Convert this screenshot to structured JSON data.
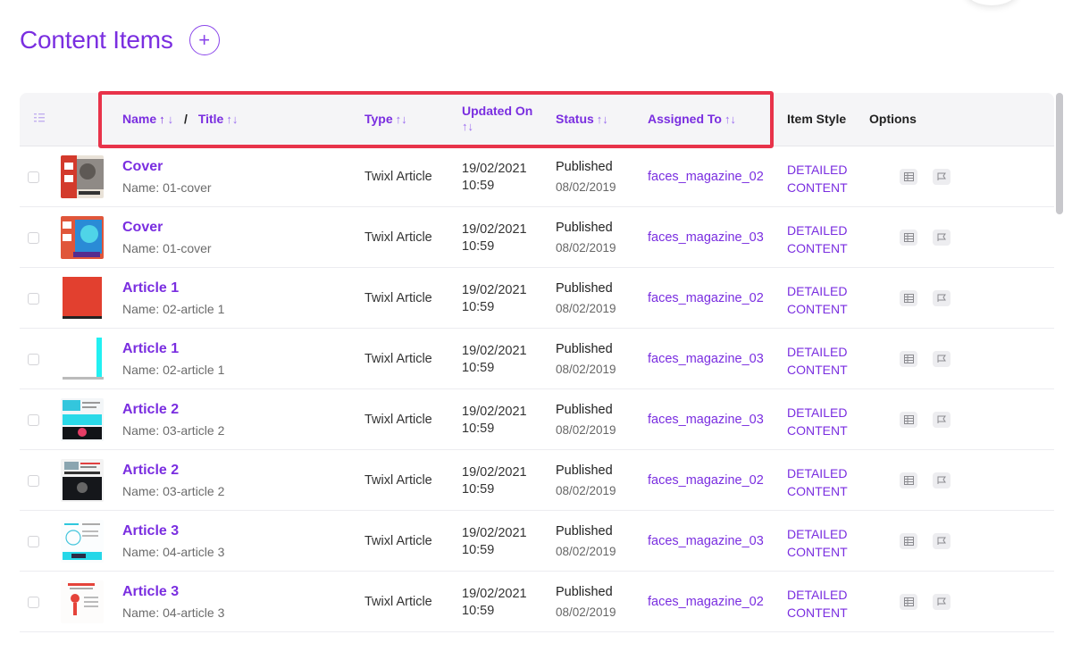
{
  "page": {
    "title": "Content Items",
    "add_icon": "plus-circle-icon"
  },
  "table": {
    "headers": {
      "select_icon": "list-check-icon",
      "name": "Name",
      "separator": "/",
      "title": "Title",
      "type": "Type",
      "updated_on": "Updated On",
      "status": "Status",
      "assigned_to": "Assigned To",
      "item_style": "Item Style",
      "options": "Options",
      "sort_glyph": "↑↓"
    },
    "rows": [
      {
        "title": "Cover",
        "name": "Name: 01-cover",
        "type": "Twixl Article",
        "updated_date": "19/02/2021",
        "updated_time": "10:59",
        "status": "Published",
        "status_date": "08/02/2019",
        "assigned": "faces_magazine_02",
        "style_1": "DETAILED",
        "style_2": "CONTENT",
        "thumb": "cover-red"
      },
      {
        "title": "Cover",
        "name": "Name: 01-cover",
        "type": "Twixl Article",
        "updated_date": "19/02/2021",
        "updated_time": "10:59",
        "status": "Published",
        "status_date": "08/02/2019",
        "assigned": "faces_magazine_03",
        "style_1": "DETAILED",
        "style_2": "CONTENT",
        "thumb": "cover-blue"
      },
      {
        "title": "Article 1",
        "name": "Name: 02-article 1",
        "type": "Twixl Article",
        "updated_date": "19/02/2021",
        "updated_time": "10:59",
        "status": "Published",
        "status_date": "08/02/2019",
        "assigned": "faces_magazine_02",
        "style_1": "DETAILED",
        "style_2": "CONTENT",
        "thumb": "red-block"
      },
      {
        "title": "Article 1",
        "name": "Name: 02-article 1",
        "type": "Twixl Article",
        "updated_date": "19/02/2021",
        "updated_time": "10:59",
        "status": "Published",
        "status_date": "08/02/2019",
        "assigned": "faces_magazine_03",
        "style_1": "DETAILED",
        "style_2": "CONTENT",
        "thumb": "white-cyan"
      },
      {
        "title": "Article 2",
        "name": "Name: 03-article 2",
        "type": "Twixl Article",
        "updated_date": "19/02/2021",
        "updated_time": "10:59",
        "status": "Published",
        "status_date": "08/02/2019",
        "assigned": "faces_magazine_03",
        "style_1": "DETAILED",
        "style_2": "CONTENT",
        "thumb": "cyan-page"
      },
      {
        "title": "Article 2",
        "name": "Name: 03-article 2",
        "type": "Twixl Article",
        "updated_date": "19/02/2021",
        "updated_time": "10:59",
        "status": "Published",
        "status_date": "08/02/2019",
        "assigned": "faces_magazine_02",
        "style_1": "DETAILED",
        "style_2": "CONTENT",
        "thumb": "dark-page"
      },
      {
        "title": "Article 3",
        "name": "Name: 04-article 3",
        "type": "Twixl Article",
        "updated_date": "19/02/2021",
        "updated_time": "10:59",
        "status": "Published",
        "status_date": "08/02/2019",
        "assigned": "faces_magazine_03",
        "style_1": "DETAILED",
        "style_2": "CONTENT",
        "thumb": "light-cyan-page"
      },
      {
        "title": "Article 3",
        "name": "Name: 04-article 3",
        "type": "Twixl Article",
        "updated_date": "19/02/2021",
        "updated_time": "10:59",
        "status": "Published",
        "status_date": "08/02/2019",
        "assigned": "faces_magazine_02",
        "style_1": "DETAILED",
        "style_2": "CONTENT",
        "thumb": "light-red-page"
      }
    ],
    "option_icons": [
      "table-icon",
      "flag-icon"
    ]
  },
  "colors": {
    "accent": "#7a2ee0",
    "highlight": "#e8334a"
  }
}
